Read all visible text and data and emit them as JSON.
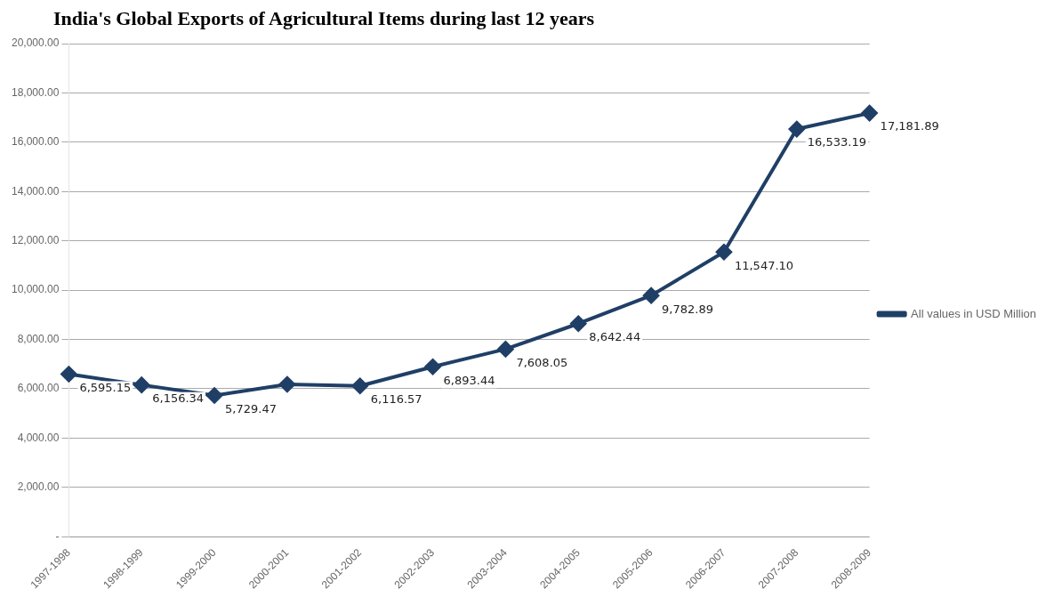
{
  "chart_data": {
    "type": "line",
    "title": "India's Global Exports of Agricultural Items during last 12 years",
    "categories": [
      "1997-1998",
      "1998-1999",
      "1999-2000",
      "2000-2001",
      "2001-2002",
      "2002-2003",
      "2003-2004",
      "2004-2005",
      "2005-2006",
      "2006-2007",
      "2007-2008",
      "2008-2009"
    ],
    "series": [
      {
        "name": "All values in USD Million",
        "color": "#1f3f66",
        "values": [
          6595.15,
          6156.34,
          5729.47,
          6180,
          6116.57,
          6893.44,
          7608.05,
          8642.44,
          9782.89,
          11547.1,
          16533.19,
          17181.89
        ],
        "value_labels": [
          "6,595.15",
          "6,156.34",
          "5,729.47",
          null,
          "6,116.57",
          "6,893.44",
          "7,608.05",
          "8,642.44",
          "9,782.89",
          "11,547.10",
          "16,533.19",
          "17,181.89"
        ]
      }
    ],
    "ylim": [
      0,
      20000
    ],
    "yticks": [
      {
        "value": 0,
        "label": "-"
      },
      {
        "value": 2000,
        "label": "2,000.00"
      },
      {
        "value": 4000,
        "label": "4,000.00"
      },
      {
        "value": 6000,
        "label": "6,000.00"
      },
      {
        "value": 8000,
        "label": "8,000.00"
      },
      {
        "value": 10000,
        "label": "10,000.00"
      },
      {
        "value": 12000,
        "label": "12,000.00"
      },
      {
        "value": 14000,
        "label": "14,000.00"
      },
      {
        "value": 16000,
        "label": "16,000.00"
      },
      {
        "value": 18000,
        "label": "18,000.00"
      },
      {
        "value": 20000,
        "label": "20,000.00"
      }
    ],
    "grid": "y",
    "legend": "right",
    "marker": "diamond",
    "line_style": "solid"
  }
}
